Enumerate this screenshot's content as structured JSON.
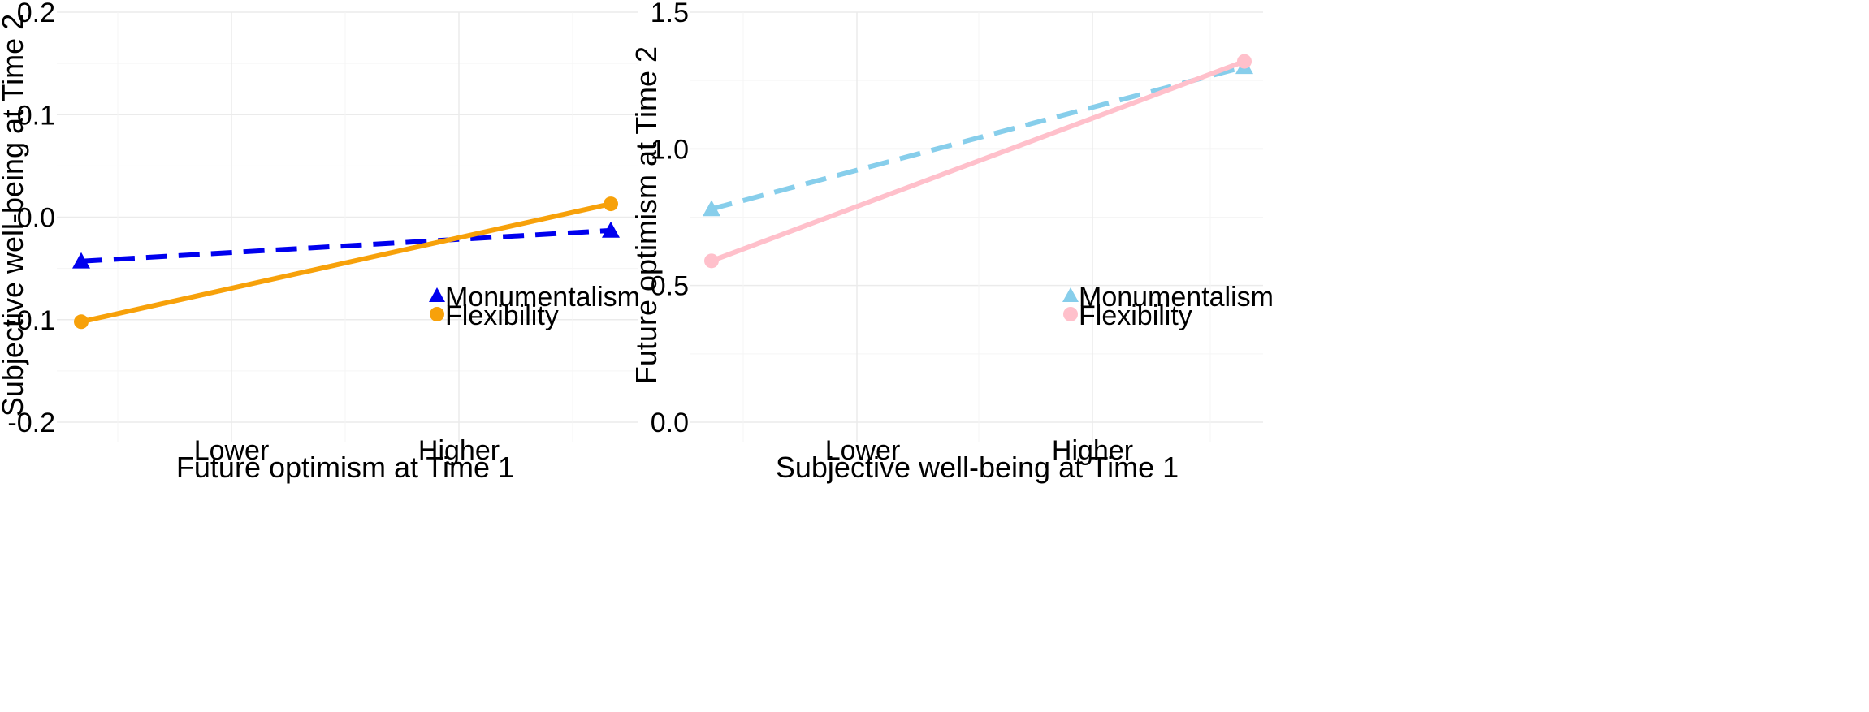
{
  "chart_data": [
    {
      "type": "line",
      "title": "",
      "xlabel": "Future optimism at Time 1",
      "ylabel": "Subjective well-being at Time 2",
      "categories": [
        "Lower",
        "Higher"
      ],
      "x": [
        -1,
        1
      ],
      "ylim": [
        -0.2,
        0.2
      ],
      "yticks": [
        -0.2,
        -0.1,
        0.0,
        0.1,
        0.2
      ],
      "ytick_labels": [
        "-0.2",
        "-0.1",
        "0.0",
        "0.1",
        "0.2"
      ],
      "grid": true,
      "legend": "bottom-right",
      "series": [
        {
          "name": "Monumentalism",
          "color": "#0000ee",
          "linestyle": "dashed",
          "marker": "triangle",
          "values": [
            -0.043,
            -0.013
          ]
        },
        {
          "name": "Flexibility",
          "color": "#f7a10a",
          "linestyle": "solid",
          "marker": "circle",
          "values": [
            -0.102,
            0.013
          ]
        }
      ]
    },
    {
      "type": "line",
      "title": "",
      "xlabel": "Subjective well-being at Time 1",
      "ylabel": "Future optimism at Time 2",
      "categories": [
        "Lower",
        "Higher"
      ],
      "x": [
        -1,
        1
      ],
      "ylim": [
        0.0,
        1.5
      ],
      "yticks": [
        0.0,
        0.5,
        1.0,
        1.5
      ],
      "ytick_labels": [
        "0.0",
        "0.5",
        "1.0",
        "1.5"
      ],
      "grid": true,
      "legend": "bottom-right",
      "series": [
        {
          "name": "Monumentalism",
          "color": "#87ceeb",
          "linestyle": "dashed",
          "marker": "triangle",
          "values": [
            0.78,
            1.3
          ]
        },
        {
          "name": "Flexibility",
          "color": "#ffc0cb",
          "linestyle": "solid",
          "marker": "circle",
          "values": [
            0.59,
            1.32
          ]
        }
      ]
    }
  ]
}
